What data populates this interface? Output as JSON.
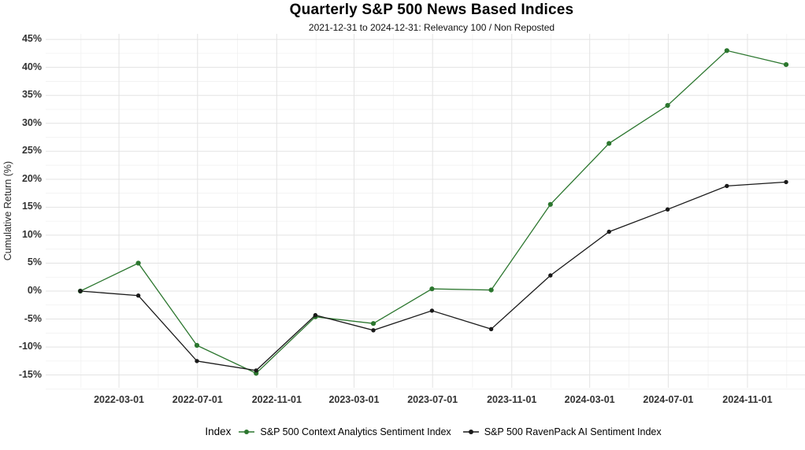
{
  "title": "Quarterly S&P 500 News Based Indices",
  "subtitle": "2021-12-31 to 2024-12-31: Relevancy 100 / Non Reposted",
  "y_axis_title": "Cumulative Return (%)",
  "legend": {
    "title": "Index",
    "items": [
      {
        "label": "S&P 500 Context Analytics Sentiment Index",
        "color": "#2b762e"
      },
      {
        "label": "S&P 500 RavenPack AI Sentiment Index",
        "color": "#1a1a1a"
      }
    ]
  },
  "chart_data": {
    "type": "line",
    "title": "Quarterly S&P 500 News Based Indices",
    "subtitle": "2021-12-31 to 2024-12-31: Relevancy 100 / Non Reposted",
    "xlabel": "",
    "ylabel": "Cumulative Return (%)",
    "x": [
      "2021-12-31",
      "2022-03-31",
      "2022-06-30",
      "2022-09-30",
      "2022-12-31",
      "2023-03-31",
      "2023-06-30",
      "2023-09-30",
      "2023-12-31",
      "2024-03-31",
      "2024-06-30",
      "2024-09-30",
      "2024-12-31"
    ],
    "series": [
      {
        "name": "S&P 500 Context Analytics Sentiment Index",
        "color": "#2b762e",
        "values": [
          0,
          5.0,
          -9.7,
          -14.7,
          -4.6,
          -5.8,
          0.4,
          0.2,
          15.5,
          26.4,
          33.2,
          43.0,
          40.5
        ]
      },
      {
        "name": "S&P 500 RavenPack AI Sentiment Index",
        "color": "#1a1a1a",
        "values": [
          0,
          -0.8,
          -12.5,
          -14.2,
          -4.3,
          -7.0,
          -3.5,
          -6.8,
          2.8,
          10.6,
          14.6,
          18.8,
          19.5
        ]
      }
    ],
    "ylim": [
      -17.5,
      46
    ],
    "y_ticks_percent": [
      -15,
      -10,
      -5,
      0,
      5,
      10,
      15,
      20,
      25,
      30,
      35,
      40,
      45
    ],
    "x_ticks": [
      "2022-03-01",
      "2022-07-01",
      "2022-11-01",
      "2023-03-01",
      "2023-07-01",
      "2023-11-01",
      "2024-03-01",
      "2024-07-01",
      "2024-11-01"
    ],
    "grid": "major+minor horizontal and vertical, light grey on white",
    "legend_position": "bottom",
    "legend_title": "Index"
  }
}
